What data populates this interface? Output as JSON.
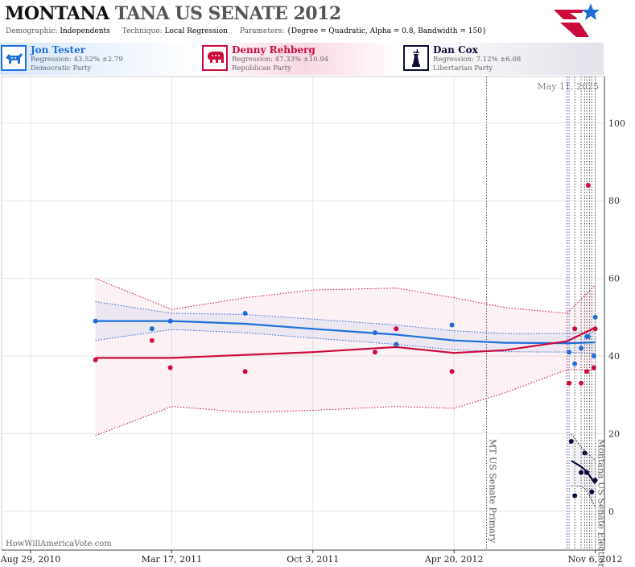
{
  "header": {
    "state": "MONTANA",
    "title_rest": "TANA US SENATE 2012",
    "demographic_label": "Demographic:",
    "demographic_value": "Independents",
    "technique_label": "Technique:",
    "technique_value": "Local Regression",
    "parameters_label": "Parameters:",
    "parameters_value": "{Degree = Quadratic, Alpha = 0.8, Bandwidth = 150}"
  },
  "candidates": [
    {
      "name": "Jon Tester",
      "regression": "Regression: 43.52% ±2.79",
      "party": "Democratic Party",
      "color": "#1f6fd8",
      "icon": "donkey-icon"
    },
    {
      "name": "Denny Rehberg",
      "regression": "Regression: 47.33% ±10.94",
      "party": "Republican Party",
      "color": "#cc0a3c",
      "icon": "elephant-icon"
    },
    {
      "name": "Dan Cox",
      "regression": "Regression: 7.12% ±6.08",
      "party": "Libertarian Party",
      "color": "#0c0c3a",
      "icon": "statue-of-liberty-icon"
    }
  ],
  "watermark": "HowWillAmericaVote.com",
  "chart_data": {
    "type": "scatter",
    "date_label": "May 11, 2025",
    "x_tick_labels": [
      "Aug 29, 2010",
      "Mar 17, 2011",
      "Oct 3, 2011",
      "Apr 20, 2012",
      "Nov 6, 2012"
    ],
    "x_tick_dates": [
      "2010-08-29",
      "2011-03-17",
      "2011-10-03",
      "2012-04-20",
      "2012-11-06"
    ],
    "y_ticks": [
      0,
      20,
      40,
      60,
      80,
      100
    ],
    "ylim": [
      -10,
      112
    ],
    "xlim": [
      "2010-07-19",
      "2012-11-19"
    ],
    "grid": true,
    "events": [
      {
        "date": "2012-06-05",
        "label": "MT US Senate Primary"
      },
      {
        "date": "2012-11-06",
        "label": "Montana US Senate Election"
      }
    ],
    "poll_lines": [
      {
        "date": "2012-09-27",
        "color": "#cc0a3c"
      },
      {
        "date": "2012-09-30",
        "color": "#1f6fd8"
      },
      {
        "date": "2012-10-08",
        "color": "#555555"
      },
      {
        "date": "2012-10-17",
        "color": "#555555"
      },
      {
        "date": "2012-10-22",
        "color": "#555555"
      },
      {
        "date": "2012-10-25",
        "color": "#555555"
      },
      {
        "date": "2012-10-29",
        "color": "#555555"
      },
      {
        "date": "2012-11-01",
        "color": "#555555"
      }
    ],
    "series": [
      {
        "name": "Jon Tester",
        "color": "#1f6fd8",
        "points": [
          [
            "2010-11-29",
            49
          ],
          [
            "2011-02-17",
            47
          ],
          [
            "2011-03-15",
            49
          ],
          [
            "2011-06-29",
            51
          ],
          [
            "2011-12-30",
            46
          ],
          [
            "2012-01-29",
            43
          ],
          [
            "2012-04-17",
            48
          ],
          [
            "2012-09-30",
            41
          ],
          [
            "2012-10-08",
            38
          ],
          [
            "2012-10-17",
            42
          ],
          [
            "2012-10-25",
            45
          ],
          [
            "2012-10-27",
            45
          ],
          [
            "2012-11-04",
            40
          ],
          [
            "2012-11-06",
            50
          ]
        ],
        "fit": [
          [
            "2010-11-29",
            49
          ],
          [
            "2011-03-17",
            49
          ],
          [
            "2011-06-29",
            48.3
          ],
          [
            "2011-10-03",
            47
          ],
          [
            "2012-01-29",
            45.5
          ],
          [
            "2012-04-20",
            44
          ],
          [
            "2012-07-01",
            43.4
          ],
          [
            "2012-09-27",
            43.3
          ],
          [
            "2012-11-06",
            43.5
          ]
        ],
        "upper": [
          [
            "2010-11-29",
            54
          ],
          [
            "2011-03-17",
            51
          ],
          [
            "2011-06-29",
            50.7
          ],
          [
            "2011-10-03",
            49.5
          ],
          [
            "2012-01-29",
            48
          ],
          [
            "2012-04-20",
            46.5
          ],
          [
            "2012-07-01",
            45.8
          ],
          [
            "2012-09-27",
            45.8
          ],
          [
            "2012-11-06",
            46.3
          ]
        ],
        "lower": [
          [
            "2010-11-29",
            44
          ],
          [
            "2011-03-17",
            46.8
          ],
          [
            "2011-06-29",
            46
          ],
          [
            "2011-10-03",
            44.6
          ],
          [
            "2012-01-29",
            43
          ],
          [
            "2012-04-20",
            41.6
          ],
          [
            "2012-07-01",
            41.1
          ],
          [
            "2012-09-27",
            41
          ],
          [
            "2012-11-06",
            40.7
          ]
        ]
      },
      {
        "name": "Denny Rehberg",
        "color": "#cc0a3c",
        "points": [
          [
            "2010-11-29",
            39
          ],
          [
            "2011-02-17",
            44
          ],
          [
            "2011-03-15",
            37
          ],
          [
            "2011-06-29",
            36
          ],
          [
            "2011-12-30",
            41
          ],
          [
            "2012-01-29",
            47
          ],
          [
            "2012-04-17",
            36
          ],
          [
            "2012-09-30",
            33
          ],
          [
            "2012-10-08",
            47
          ],
          [
            "2012-10-17",
            33
          ],
          [
            "2012-10-25",
            36
          ],
          [
            "2012-10-27",
            84
          ],
          [
            "2012-11-04",
            37
          ],
          [
            "2012-11-06",
            47
          ]
        ],
        "fit": [
          [
            "2010-11-29",
            39.5
          ],
          [
            "2011-03-17",
            39.5
          ],
          [
            "2011-06-29",
            40.3
          ],
          [
            "2011-10-03",
            41
          ],
          [
            "2012-01-29",
            42.3
          ],
          [
            "2012-04-20",
            40.8
          ],
          [
            "2012-07-01",
            41.5
          ],
          [
            "2012-09-27",
            43.8
          ],
          [
            "2012-11-06",
            47.3
          ]
        ],
        "upper": [
          [
            "2010-11-29",
            60
          ],
          [
            "2011-03-17",
            52
          ],
          [
            "2011-06-29",
            55
          ],
          [
            "2011-10-03",
            57
          ],
          [
            "2012-01-29",
            57.5
          ],
          [
            "2012-04-20",
            55
          ],
          [
            "2012-07-01",
            52.5
          ],
          [
            "2012-09-27",
            51
          ],
          [
            "2012-11-06",
            58.3
          ]
        ],
        "lower": [
          [
            "2010-11-29",
            19.5
          ],
          [
            "2011-03-17",
            27
          ],
          [
            "2011-06-29",
            25.5
          ],
          [
            "2011-10-03",
            26
          ],
          [
            "2012-01-29",
            27
          ],
          [
            "2012-04-20",
            26.5
          ],
          [
            "2012-07-01",
            30.5
          ],
          [
            "2012-09-27",
            36.5
          ],
          [
            "2012-11-06",
            36.4
          ]
        ]
      },
      {
        "name": "Dan Cox",
        "color": "#0c0c3a",
        "points": [
          [
            "2012-10-03",
            18
          ],
          [
            "2012-10-08",
            4
          ],
          [
            "2012-10-17",
            10
          ],
          [
            "2012-10-22",
            15
          ],
          [
            "2012-10-25",
            10
          ],
          [
            "2012-11-01",
            5
          ],
          [
            "2012-11-06",
            8
          ]
        ],
        "fit": [
          [
            "2012-10-03",
            13
          ],
          [
            "2012-10-17",
            11.5
          ],
          [
            "2012-10-25",
            10.2
          ],
          [
            "2012-11-06",
            7.1
          ]
        ],
        "upper": [
          [
            "2012-10-03",
            20
          ],
          [
            "2012-10-17",
            16.5
          ],
          [
            "2012-10-25",
            15
          ],
          [
            "2012-11-06",
            13.2
          ]
        ],
        "lower": [
          [
            "2012-10-03",
            6.5
          ],
          [
            "2012-10-17",
            6.5
          ],
          [
            "2012-10-25",
            5.4
          ],
          [
            "2012-11-06",
            1
          ]
        ]
      }
    ]
  }
}
